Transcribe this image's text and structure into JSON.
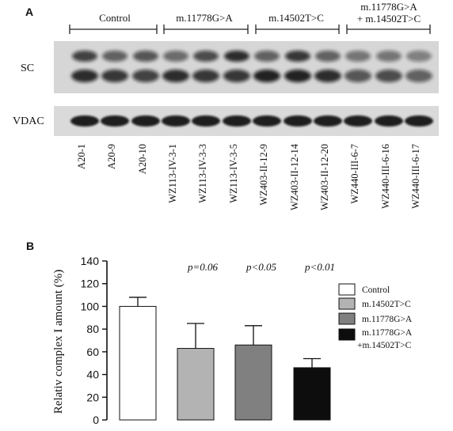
{
  "panel_a": {
    "label": "A",
    "group_labels": [
      "Control",
      "m.11778G>A",
      "m.14502T>C",
      "m.11778G>A",
      "+ m.14502T>C"
    ],
    "row_labels": [
      "SC",
      "VDAC"
    ],
    "lanes": [
      "A20-1",
      "A20-9",
      "A20-10",
      "WZ113-IV-3-1",
      "WZ113-IV-3-3",
      "WZ113-IV-3-5",
      "WZ403-II-12-9",
      "WZ403-II-12-14",
      "WZ403-II-12-20",
      "WZ440-III-6-7",
      "WZ440-III-6-16",
      "WZ440-III-6-17"
    ]
  },
  "panel_b": {
    "label": "B"
  },
  "chart_data": {
    "type": "bar",
    "categories": [
      "Control",
      "m.14502T>C",
      "m.11778G>A",
      "m.11778G>A +m.14502T>C"
    ],
    "series": [
      {
        "values": [
          100,
          63,
          66,
          46
        ],
        "errors": [
          8,
          22,
          17,
          8
        ]
      }
    ],
    "bar_colors": [
      "#ffffff",
      "#b3b3b3",
      "#808080",
      "#0d0d0d"
    ],
    "ylabel": "Relativ complex I amount (%)",
    "ylim": [
      0,
      140
    ],
    "yticks": [
      "0",
      "20",
      "40",
      "60",
      "80",
      "100",
      "120",
      "140"
    ],
    "annotations": [
      "p=0.06",
      "p<0.05",
      "p<0.01"
    ],
    "legend": {
      "position": "right",
      "entries": [
        "Control",
        "m.14502T>C",
        "m.11778G>A",
        "m.11778G>A",
        "+m.14502T>C"
      ]
    },
    "grid": false
  }
}
